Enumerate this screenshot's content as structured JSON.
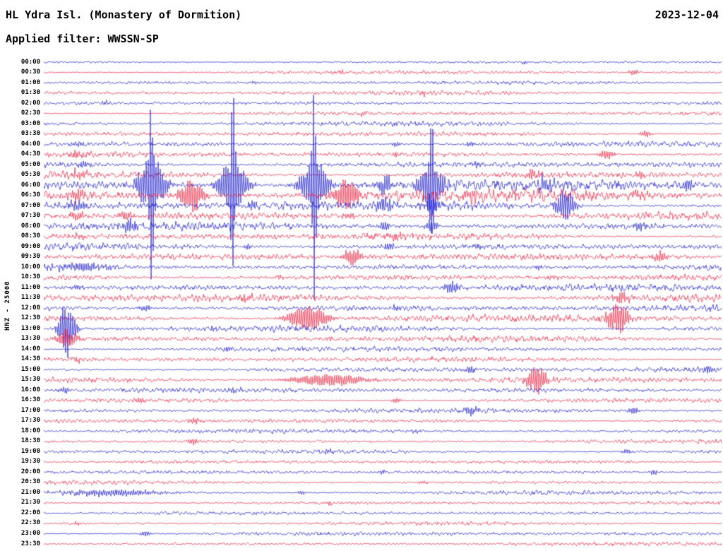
{
  "header": {
    "title": "HL Ydra Isl. (Monastery of Dormition)",
    "date": "2023-12-04",
    "filter_label": "Applied filter: WWSSN-SP"
  },
  "axis": {
    "station_label": "HNZ - 25000"
  },
  "chart_data": {
    "type": "line",
    "subtype": "helicorder-seismogram",
    "title": "HL Ydra Isl. (Monastery of Dormition)",
    "date": "2023-12-04",
    "filter": "WWSSN-SP",
    "ylabel": "HNZ - 25000",
    "minutes_per_row": 30,
    "legend": "none",
    "grid": false,
    "colors": {
      "even_rows": "#1212cc",
      "odd_rows": "#ec1a3a"
    },
    "events_format": "[x_fraction_of_row, amplitude_px, sigma_fraction_of_row]",
    "rows": [
      {
        "label": "00:00",
        "noise": 1.2,
        "events": [
          [
            0.71,
            3,
            0.004
          ]
        ]
      },
      {
        "label": "00:30",
        "noise": 1.5,
        "events": [
          [
            0.44,
            3,
            0.004
          ],
          [
            0.87,
            4,
            0.005
          ]
        ]
      },
      {
        "label": "01:00",
        "noise": 1.5,
        "events": [
          [
            0.31,
            3,
            0.004
          ]
        ]
      },
      {
        "label": "01:30",
        "noise": 1.8,
        "events": [
          [
            0.56,
            3,
            0.004
          ]
        ]
      },
      {
        "label": "02:00",
        "noise": 1.8,
        "events": [
          [
            0.09,
            3,
            0.005
          ]
        ]
      },
      {
        "label": "02:30",
        "noise": 1.8,
        "events": [
          [
            0.47,
            3,
            0.004
          ]
        ]
      },
      {
        "label": "03:00",
        "noise": 2.0,
        "events": [
          [
            0.52,
            3,
            0.004
          ]
        ]
      },
      {
        "label": "03:30",
        "noise": 2.0,
        "events": [
          [
            0.888,
            5,
            0.006
          ]
        ]
      },
      {
        "label": "04:00",
        "noise": 2.2,
        "events": [
          [
            0.05,
            4,
            0.006
          ],
          [
            0.52,
            4,
            0.005
          ],
          [
            0.63,
            4,
            0.005
          ]
        ]
      },
      {
        "label": "04:30",
        "noise": 2.5,
        "events": [
          [
            0.05,
            5,
            0.008
          ],
          [
            0.52,
            4,
            0.006
          ],
          [
            0.83,
            7,
            0.008
          ]
        ]
      },
      {
        "label": "05:00",
        "noise": 2.8,
        "events": [
          [
            0.06,
            5,
            0.008
          ],
          [
            0.64,
            4,
            0.006
          ]
        ]
      },
      {
        "label": "05:30",
        "noise": 3.0,
        "events": [
          [
            0.05,
            6,
            0.008
          ],
          [
            0.722,
            9,
            0.008
          ],
          [
            0.88,
            5,
            0.006
          ]
        ]
      },
      {
        "label": "06:00",
        "noise": 4.5,
        "events": [
          [
            0.159,
            150,
            0.002
          ],
          [
            0.279,
            160,
            0.002
          ],
          [
            0.399,
            170,
            0.002
          ],
          [
            0.572,
            90,
            0.002
          ],
          [
            0.159,
            45,
            0.014
          ],
          [
            0.279,
            42,
            0.014
          ],
          [
            0.399,
            42,
            0.014
          ],
          [
            0.572,
            38,
            0.012
          ],
          [
            0.503,
            15,
            0.008
          ],
          [
            0.74,
            10,
            0.008
          ],
          [
            0.95,
            10,
            0.006
          ]
        ]
      },
      {
        "label": "06:30",
        "noise": 5.0,
        "events": [
          [
            0.217,
            26,
            0.012
          ],
          [
            0.446,
            26,
            0.012
          ],
          [
            0.05,
            8,
            0.01
          ],
          [
            0.63,
            8,
            0.008
          ],
          [
            0.88,
            7,
            0.008
          ]
        ]
      },
      {
        "label": "07:00",
        "noise": 4.0,
        "events": [
          [
            0.769,
            24,
            0.01
          ],
          [
            0.503,
            13,
            0.008
          ],
          [
            0.572,
            13,
            0.008
          ],
          [
            0.05,
            8,
            0.01
          ],
          [
            0.31,
            8,
            0.006
          ]
        ]
      },
      {
        "label": "07:30",
        "noise": 3.5,
        "events": [
          [
            0.12,
            7,
            0.008
          ],
          [
            0.05,
            6,
            0.008
          ],
          [
            0.45,
            5,
            0.006
          ]
        ]
      },
      {
        "label": "08:00",
        "noise": 3.5,
        "events": [
          [
            0.128,
            10,
            0.008
          ],
          [
            0.503,
            8,
            0.006
          ],
          [
            0.572,
            10,
            0.006
          ],
          [
            0.88,
            6,
            0.006
          ]
        ]
      },
      {
        "label": "08:30",
        "noise": 3.0,
        "events": [
          [
            0.05,
            4,
            0.006
          ],
          [
            0.52,
            5,
            0.006
          ]
        ]
      },
      {
        "label": "09:00",
        "noise": 3.0,
        "events": [
          [
            0.3,
            4,
            0.005
          ],
          [
            0.508,
            6,
            0.006
          ],
          [
            0.64,
            4,
            0.005
          ]
        ]
      },
      {
        "label": "09:30",
        "noise": 3.0,
        "events": [
          [
            0.456,
            12,
            0.01
          ],
          [
            0.909,
            8,
            0.008
          ]
        ]
      },
      {
        "label": "10:00",
        "noise": 3.0,
        "events": [
          [
            0.055,
            6,
            0.03
          ],
          [
            0.73,
            4,
            0.005
          ]
        ]
      },
      {
        "label": "10:30",
        "noise": 3.0,
        "events": [
          [
            0.35,
            4,
            0.005
          ],
          [
            0.75,
            4,
            0.006
          ]
        ]
      },
      {
        "label": "11:00",
        "noise": 3.0,
        "events": [
          [
            0.602,
            9,
            0.008
          ],
          [
            0.05,
            4,
            0.006
          ]
        ]
      },
      {
        "label": "11:30",
        "noise": 3.5,
        "events": [
          [
            0.852,
            9,
            0.008
          ],
          [
            0.3,
            5,
            0.006
          ]
        ]
      },
      {
        "label": "12:00",
        "noise": 3.0,
        "events": [
          [
            0.15,
            5,
            0.006
          ],
          [
            0.52,
            5,
            0.006
          ]
        ]
      },
      {
        "label": "12:30",
        "noise": 3.0,
        "events": [
          [
            0.389,
            20,
            0.02
          ],
          [
            0.847,
            24,
            0.012
          ]
        ]
      },
      {
        "label": "13:00",
        "noise": 2.5,
        "events": [
          [
            0.034,
            42,
            0.008
          ],
          [
            0.25,
            4,
            0.005
          ]
        ]
      },
      {
        "label": "13:30",
        "noise": 2.5,
        "events": [
          [
            0.034,
            14,
            0.01
          ],
          [
            0.42,
            4,
            0.005
          ]
        ]
      },
      {
        "label": "14:00",
        "noise": 2.2,
        "events": [
          [
            0.27,
            4,
            0.005
          ]
        ]
      },
      {
        "label": "14:30",
        "noise": 2.2,
        "events": [
          [
            0.05,
            4,
            0.006
          ]
        ]
      },
      {
        "label": "15:00",
        "noise": 2.2,
        "events": [
          [
            0.63,
            6,
            0.006
          ],
          [
            0.98,
            6,
            0.006
          ]
        ]
      },
      {
        "label": "15:30",
        "noise": 2.5,
        "events": [
          [
            0.42,
            9,
            0.04
          ],
          [
            0.727,
            22,
            0.01
          ]
        ]
      },
      {
        "label": "16:00",
        "noise": 2.2,
        "events": [
          [
            0.03,
            5,
            0.006
          ],
          [
            0.28,
            5,
            0.006
          ]
        ]
      },
      {
        "label": "16:30",
        "noise": 2.0,
        "events": [
          [
            0.14,
            4,
            0.005
          ],
          [
            0.52,
            4,
            0.005
          ]
        ]
      },
      {
        "label": "17:00",
        "noise": 2.0,
        "events": [
          [
            0.63,
            7,
            0.007
          ],
          [
            0.87,
            5,
            0.006
          ]
        ]
      },
      {
        "label": "17:30",
        "noise": 2.0,
        "events": [
          [
            0.222,
            5,
            0.006
          ]
        ]
      },
      {
        "label": "18:00",
        "noise": 1.8,
        "events": [
          [
            0.55,
            3,
            0.005
          ]
        ]
      },
      {
        "label": "18:30",
        "noise": 1.8,
        "events": [
          [
            0.22,
            5,
            0.006
          ]
        ]
      },
      {
        "label": "19:00",
        "noise": 1.8,
        "events": [
          [
            0.42,
            4,
            0.005
          ],
          [
            0.86,
            4,
            0.005
          ]
        ]
      },
      {
        "label": "19:30",
        "noise": 1.6,
        "events": []
      },
      {
        "label": "20:00",
        "noise": 1.6,
        "events": [
          [
            0.5,
            3,
            0.005
          ],
          [
            0.9,
            4,
            0.005
          ]
        ]
      },
      {
        "label": "20:30",
        "noise": 1.6,
        "events": [
          [
            0.56,
            3,
            0.005
          ]
        ]
      },
      {
        "label": "21:00",
        "noise": 1.8,
        "events": [
          [
            0.1,
            5,
            0.055
          ],
          [
            0.38,
            3,
            0.005
          ]
        ]
      },
      {
        "label": "21:30",
        "noise": 1.6,
        "events": [
          [
            0.42,
            3,
            0.005
          ]
        ]
      },
      {
        "label": "22:00",
        "noise": 1.5,
        "events": []
      },
      {
        "label": "22:30",
        "noise": 1.5,
        "events": [
          [
            0.05,
            3,
            0.005
          ]
        ]
      },
      {
        "label": "23:00",
        "noise": 1.7,
        "events": [
          [
            0.15,
            4,
            0.006
          ]
        ]
      },
      {
        "label": "23:30",
        "noise": 1.5,
        "events": []
      }
    ]
  }
}
